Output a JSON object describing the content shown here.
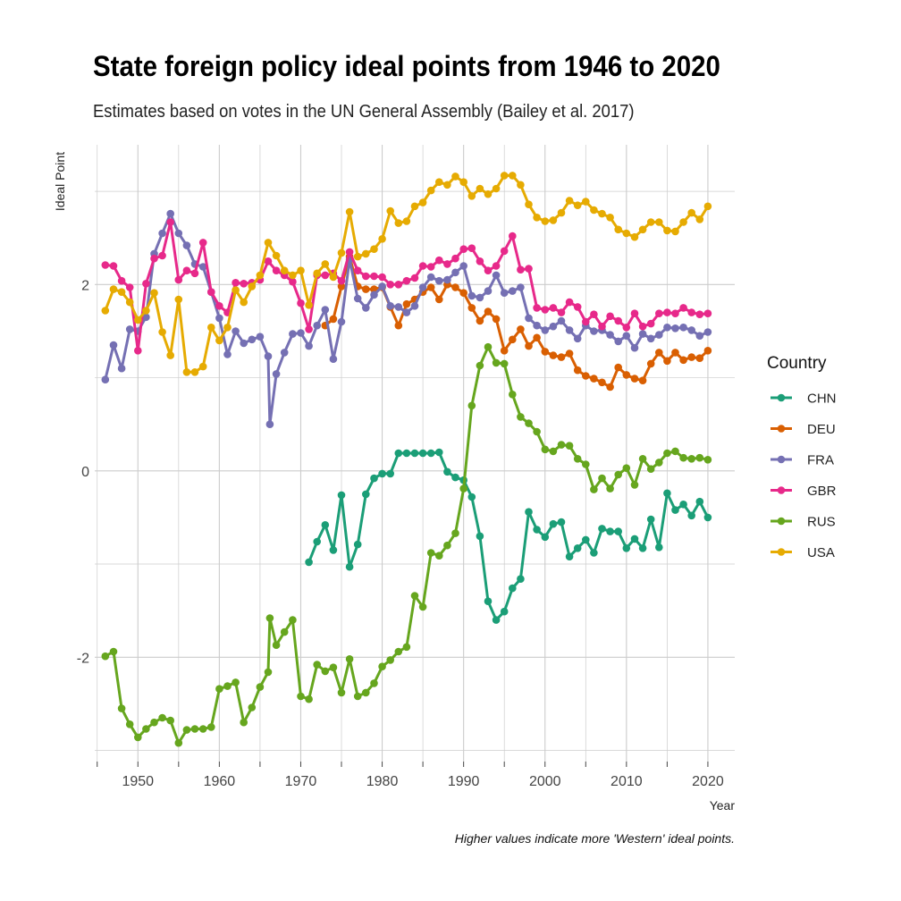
{
  "colors": {
    "CHN": "#1b9e77",
    "DEU": "#d95f02",
    "FRA": "#7570b3",
    "GBR": "#e7298a",
    "RUS": "#66a61e",
    "USA": "#e6ab02"
  },
  "chart_data": {
    "type": "line",
    "title": "State foreign policy ideal points from 1946 to 2020",
    "subtitle": "Estimates based on votes in the UN General Assembly (Bailey et al. 2017)",
    "caption": "Higher values indicate more 'Western' ideal points.",
    "xlabel": "Year",
    "ylabel": "Ideal Point",
    "xlim": [
      1944.7,
      2023.3
    ],
    "ylim": [
      -3.12,
      3.5
    ],
    "x_ticks": [
      1950,
      1960,
      1970,
      1980,
      1990,
      2000,
      2010,
      2020
    ],
    "y_ticks": [
      -2,
      0,
      2
    ],
    "grid": true,
    "legend_title": "Country",
    "legend_position": "right",
    "series": [
      {
        "name": "CHN",
        "x": [
          1971,
          1972,
          1973,
          1974,
          1975,
          1976,
          1977,
          1978,
          1979,
          1980,
          1981,
          1982,
          1983,
          1984,
          1985,
          1986,
          1987,
          1988,
          1989,
          1990,
          1991,
          1992,
          1993,
          1994,
          1995,
          1996,
          1997,
          1998,
          1999,
          2000,
          2001,
          2002,
          2003,
          2004,
          2005,
          2006,
          2007,
          2008,
          2009,
          2010,
          2011,
          2012,
          2013,
          2014,
          2015,
          2016,
          2017,
          2018,
          2019,
          2020
        ],
        "y": [
          -0.98,
          -0.76,
          -0.58,
          -0.85,
          -0.26,
          -1.03,
          -0.79,
          -0.25,
          -0.08,
          -0.03,
          -0.03,
          0.19,
          0.19,
          0.19,
          0.19,
          0.19,
          0.2,
          -0.01,
          -0.07,
          -0.1,
          -0.28,
          -0.7,
          -1.4,
          -1.6,
          -1.51,
          -1.26,
          -1.16,
          -0.44,
          -0.63,
          -0.71,
          -0.57,
          -0.55,
          -0.92,
          -0.83,
          -0.74,
          -0.88,
          -0.62,
          -0.65,
          -0.65,
          -0.83,
          -0.73,
          -0.83,
          -0.52,
          -0.82,
          -0.24,
          -0.42,
          -0.36,
          -0.48,
          -0.33,
          -0.5
        ]
      },
      {
        "name": "DEU",
        "x": [
          1973,
          1974,
          1975,
          1976,
          1977,
          1978,
          1979,
          1980,
          1981,
          1982,
          1983,
          1984,
          1985,
          1986,
          1987,
          1988,
          1989,
          1990,
          1991,
          1992,
          1993,
          1994,
          1995,
          1996,
          1997,
          1998,
          1999,
          2000,
          2001,
          2002,
          2003,
          2004,
          2005,
          2006,
          2007,
          2008,
          2009,
          2010,
          2011,
          2012,
          2013,
          2014,
          2015,
          2016,
          2017,
          2018,
          2019,
          2020
        ],
        "y": [
          1.56,
          1.63,
          1.98,
          2.3,
          1.98,
          1.95,
          1.95,
          1.97,
          1.76,
          1.56,
          1.79,
          1.84,
          1.92,
          1.97,
          1.84,
          2.0,
          1.97,
          1.91,
          1.75,
          1.61,
          1.71,
          1.63,
          1.29,
          1.41,
          1.52,
          1.34,
          1.43,
          1.28,
          1.24,
          1.22,
          1.26,
          1.08,
          1.02,
          0.99,
          0.95,
          0.9,
          1.11,
          1.03,
          0.99,
          0.97,
          1.15,
          1.27,
          1.18,
          1.27,
          1.19,
          1.22,
          1.21,
          1.29
        ]
      },
      {
        "name": "FRA",
        "x": [
          1946,
          1947,
          1948,
          1949,
          1950,
          1951,
          1952,
          1953,
          1954,
          1955,
          1956,
          1957,
          1958,
          1959,
          1960,
          1961,
          1962,
          1963,
          1964,
          1965,
          1966,
          1966.2,
          1967,
          1968,
          1969,
          1970,
          1971,
          1972,
          1973,
          1974,
          1975,
          1976,
          1977,
          1978,
          1979,
          1980,
          1981,
          1982,
          1983,
          1984,
          1985,
          1986,
          1987,
          1988,
          1989,
          1990,
          1991,
          1992,
          1993,
          1994,
          1995,
          1996,
          1997,
          1998,
          1999,
          2000,
          2001,
          2002,
          2003,
          2004,
          2005,
          2006,
          2007,
          2008,
          2009,
          2010,
          2011,
          2012,
          2013,
          2014,
          2015,
          2016,
          2017,
          2018,
          2019,
          2020
        ],
        "y": [
          0.98,
          1.35,
          1.1,
          1.52,
          1.5,
          1.65,
          2.33,
          2.55,
          2.76,
          2.55,
          2.42,
          2.22,
          2.19,
          1.92,
          1.64,
          1.25,
          1.5,
          1.37,
          1.41,
          1.44,
          1.23,
          0.5,
          1.04,
          1.27,
          1.47,
          1.48,
          1.34,
          1.56,
          1.73,
          1.2,
          1.6,
          2.27,
          1.85,
          1.75,
          1.89,
          1.98,
          1.77,
          1.76,
          1.7,
          1.77,
          1.97,
          2.08,
          2.04,
          2.05,
          2.13,
          2.2,
          1.88,
          1.86,
          1.93,
          2.1,
          1.91,
          1.93,
          1.97,
          1.64,
          1.56,
          1.51,
          1.55,
          1.61,
          1.51,
          1.42,
          1.56,
          1.5,
          1.51,
          1.46,
          1.39,
          1.45,
          1.32,
          1.47,
          1.42,
          1.46,
          1.54,
          1.53,
          1.54,
          1.51,
          1.45,
          1.49
        ]
      },
      {
        "name": "GBR",
        "x": [
          1946,
          1947,
          1948,
          1949,
          1950,
          1951,
          1952,
          1953,
          1954,
          1955,
          1956,
          1957,
          1958,
          1959,
          1960,
          1961,
          1962,
          1963,
          1964,
          1965,
          1966,
          1967,
          1968,
          1969,
          1970,
          1971,
          1972,
          1973,
          1974,
          1975,
          1976,
          1977,
          1978,
          1979,
          1980,
          1981,
          1982,
          1983,
          1984,
          1985,
          1986,
          1987,
          1988,
          1989,
          1990,
          1991,
          1992,
          1993,
          1994,
          1995,
          1996,
          1997,
          1998,
          1999,
          2000,
          2001,
          2002,
          2003,
          2004,
          2005,
          2006,
          2007,
          2008,
          2009,
          2010,
          2011,
          2012,
          2013,
          2014,
          2015,
          2016,
          2017,
          2018,
          2019,
          2020
        ],
        "y": [
          2.21,
          2.2,
          2.04,
          1.97,
          1.29,
          2.01,
          2.28,
          2.31,
          2.67,
          2.05,
          2.15,
          2.12,
          2.45,
          1.92,
          1.77,
          1.7,
          2.02,
          2.01,
          2.02,
          2.05,
          2.25,
          2.15,
          2.1,
          2.03,
          1.8,
          1.52,
          2.1,
          2.1,
          2.12,
          2.04,
          2.35,
          2.15,
          2.09,
          2.09,
          2.08,
          2.0,
          2.0,
          2.04,
          2.07,
          2.2,
          2.19,
          2.26,
          2.22,
          2.28,
          2.38,
          2.39,
          2.25,
          2.15,
          2.2,
          2.36,
          2.52,
          2.16,
          2.17,
          1.75,
          1.73,
          1.75,
          1.7,
          1.81,
          1.76,
          1.6,
          1.68,
          1.55,
          1.66,
          1.61,
          1.54,
          1.69,
          1.55,
          1.58,
          1.69,
          1.7,
          1.69,
          1.75,
          1.7,
          1.68,
          1.69
        ]
      },
      {
        "name": "RUS",
        "x": [
          1946,
          1947,
          1948,
          1949,
          1950,
          1951,
          1952,
          1953,
          1954,
          1955,
          1956,
          1957,
          1958,
          1959,
          1960,
          1961,
          1962,
          1963,
          1964,
          1965,
          1966,
          1966.2,
          1967,
          1968,
          1969,
          1970,
          1971,
          1972,
          1973,
          1974,
          1975,
          1976,
          1977,
          1978,
          1979,
          1980,
          1981,
          1982,
          1983,
          1984,
          1985,
          1986,
          1987,
          1988,
          1989,
          1990,
          1991,
          1992,
          1993,
          1994,
          1995,
          1996,
          1997,
          1998,
          1999,
          2000,
          2001,
          2002,
          2003,
          2004,
          2005,
          2006,
          2007,
          2008,
          2009,
          2010,
          2011,
          2012,
          2013,
          2014,
          2015,
          2016,
          2017,
          2018,
          2019,
          2020
        ],
        "y": [
          -1.99,
          -1.94,
          -2.55,
          -2.72,
          -2.86,
          -2.77,
          -2.7,
          -2.65,
          -2.68,
          -2.92,
          -2.78,
          -2.77,
          -2.77,
          -2.75,
          -2.34,
          -2.31,
          -2.27,
          -2.7,
          -2.54,
          -2.32,
          -2.16,
          -1.58,
          -1.87,
          -1.73,
          -1.6,
          -2.42,
          -2.45,
          -2.08,
          -2.15,
          -2.11,
          -2.38,
          -2.02,
          -2.42,
          -2.38,
          -2.28,
          -2.1,
          -2.03,
          -1.94,
          -1.89,
          -1.34,
          -1.46,
          -0.88,
          -0.91,
          -0.8,
          -0.67,
          -0.19,
          0.7,
          1.13,
          1.33,
          1.16,
          1.15,
          0.82,
          0.58,
          0.51,
          0.42,
          0.23,
          0.21,
          0.28,
          0.27,
          0.13,
          0.07,
          -0.2,
          -0.08,
          -0.19,
          -0.04,
          0.03,
          -0.15,
          0.13,
          0.02,
          0.09,
          0.19,
          0.21,
          0.14,
          0.13,
          0.14,
          0.12
        ]
      },
      {
        "name": "USA",
        "x": [
          1946,
          1947,
          1948,
          1949,
          1950,
          1951,
          1952,
          1953,
          1954,
          1955,
          1956,
          1957,
          1958,
          1959,
          1960,
          1961,
          1962,
          1963,
          1964,
          1965,
          1966,
          1967,
          1968,
          1969,
          1970,
          1971,
          1972,
          1973,
          1974,
          1975,
          1976,
          1977,
          1978,
          1979,
          1980,
          1981,
          1982,
          1983,
          1984,
          1985,
          1986,
          1987,
          1988,
          1989,
          1990,
          1991,
          1992,
          1993,
          1994,
          1995,
          1996,
          1997,
          1998,
          1999,
          2000,
          2001,
          2002,
          2003,
          2004,
          2005,
          2006,
          2007,
          2008,
          2009,
          2010,
          2011,
          2012,
          2013,
          2014,
          2015,
          2016,
          2017,
          2018,
          2019,
          2020
        ],
        "y": [
          1.72,
          1.95,
          1.92,
          1.81,
          1.62,
          1.72,
          1.91,
          1.49,
          1.24,
          1.84,
          1.06,
          1.06,
          1.12,
          1.54,
          1.4,
          1.54,
          1.94,
          1.81,
          1.98,
          2.1,
          2.45,
          2.31,
          2.15,
          2.1,
          2.15,
          1.78,
          2.12,
          2.22,
          2.08,
          2.34,
          2.78,
          2.3,
          2.33,
          2.38,
          2.49,
          2.79,
          2.66,
          2.68,
          2.84,
          2.88,
          3.01,
          3.1,
          3.07,
          3.16,
          3.1,
          2.95,
          3.03,
          2.97,
          3.03,
          3.17,
          3.17,
          3.07,
          2.86,
          2.72,
          2.68,
          2.69,
          2.77,
          2.9,
          2.85,
          2.89,
          2.8,
          2.76,
          2.72,
          2.59,
          2.55,
          2.51,
          2.59,
          2.67,
          2.67,
          2.58,
          2.57,
          2.67,
          2.77,
          2.7,
          2.84
        ]
      }
    ]
  }
}
